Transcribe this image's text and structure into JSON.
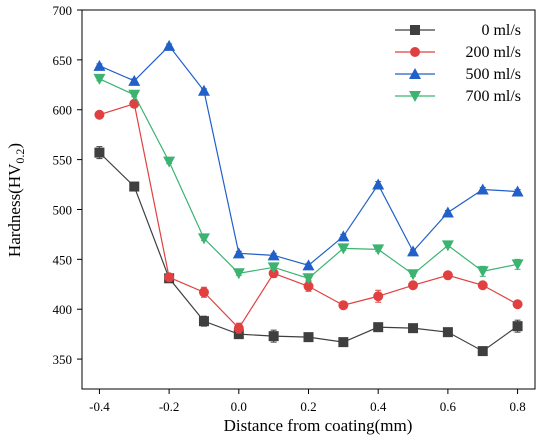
{
  "chart_data": {
    "type": "line",
    "xlabel": "Distance from coating(mm)",
    "ylabel": "Hardness(HV",
    "ylabel_sub": "0.2",
    "ylabel_close": ")",
    "xlim": [
      -0.45,
      0.85
    ],
    "ylim": [
      320,
      700
    ],
    "xticks": [
      -0.4,
      -0.2,
      0.0,
      0.2,
      0.4,
      0.6,
      0.8
    ],
    "xtick_labels": [
      "-0.4",
      "-0.2",
      "0.0",
      "0.2",
      "0.4",
      "0.6",
      "0.8"
    ],
    "yticks": [
      350,
      400,
      450,
      500,
      550,
      600,
      650,
      700
    ],
    "ytick_labels": [
      "350",
      "400",
      "450",
      "500",
      "550",
      "600",
      "650",
      "700"
    ],
    "grid": false,
    "legend_position": "top-right",
    "x": [
      -0.4,
      -0.3,
      -0.2,
      -0.1,
      0.0,
      0.1,
      0.2,
      0.3,
      0.4,
      0.5,
      0.6,
      0.7,
      0.8
    ],
    "series": [
      {
        "name": "0 ml/s",
        "color": "#3f3f3f",
        "marker": "square",
        "values": [
          557,
          523,
          431,
          388,
          375,
          373,
          372,
          367,
          382,
          381,
          377,
          358,
          383
        ],
        "errors": [
          6,
          3,
          4,
          5,
          3,
          6,
          3,
          2,
          3,
          2,
          2,
          2,
          6
        ]
      },
      {
        "name": "200 ml/s",
        "color": "#e04040",
        "marker": "circle",
        "values": [
          595,
          606,
          432,
          417,
          381,
          436,
          423,
          404,
          413,
          424,
          434,
          424,
          405
        ],
        "errors": [
          2,
          3,
          3,
          5,
          5,
          4,
          5,
          3,
          6,
          3,
          3,
          3,
          3
        ]
      },
      {
        "name": "500 ml/s",
        "color": "#2060c8",
        "marker": "triangle-up",
        "values": [
          644,
          629,
          664,
          619,
          456,
          454,
          444,
          473,
          525,
          458,
          497,
          520,
          518
        ],
        "errors": [
          2,
          2,
          2,
          2,
          2,
          2,
          2,
          2,
          3,
          2,
          2,
          2,
          2
        ]
      },
      {
        "name": "700 ml/s",
        "color": "#3cb371",
        "marker": "triangle-down",
        "values": [
          631,
          615,
          548,
          471,
          436,
          442,
          431,
          461,
          460,
          435,
          464,
          438,
          445
        ],
        "errors": [
          2,
          2,
          2,
          2,
          2,
          2,
          2,
          2,
          2,
          2,
          2,
          5,
          5
        ]
      }
    ]
  }
}
